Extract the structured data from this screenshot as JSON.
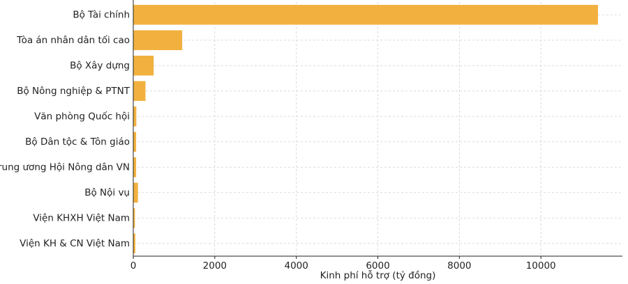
{
  "chart_data": {
    "type": "bar",
    "orientation": "horizontal",
    "categories": [
      "Bộ Tài chính",
      "Tòa án nhân dân tối cao",
      "Bộ Xây dựng",
      "Bộ Nông nghiệp & PTNT",
      "Văn phòng Quốc hội",
      "Bộ Dân tộc & Tôn giáo",
      "Trung ương Hội Nông dân VN",
      "Bộ Nội vụ",
      "Viện KHXH Việt Nam",
      "Viện KH & CN Việt Nam"
    ],
    "values": [
      11400,
      1200,
      500,
      300,
      75,
      70,
      70,
      115,
      40,
      50
    ],
    "xlabel": "Kinh phí hỗ trợ (tỷ đồng)",
    "xlim": [
      0,
      12000
    ],
    "xticks": [
      0,
      2000,
      4000,
      6000,
      8000,
      10000
    ],
    "grid": true,
    "bar_color": "#f2b13f"
  }
}
